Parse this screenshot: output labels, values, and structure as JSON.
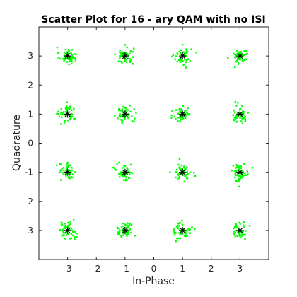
{
  "chart_data": {
    "type": "scatter",
    "title": "Scatter Plot for 16 - ary QAM with no ISI",
    "xlabel": "In-Phase",
    "ylabel": "Quadrature",
    "xlim": [
      -4,
      4
    ],
    "ylim": [
      -4,
      4
    ],
    "xticks": [
      -3,
      -2,
      -1,
      0,
      1,
      2,
      3
    ],
    "yticks": [
      -3,
      -2,
      -1,
      0,
      1,
      2,
      3
    ],
    "grid": false,
    "noise_std_estimate": 0.15,
    "series": [
      {
        "role": "received",
        "marker": "dot",
        "color": "#00ff00",
        "samples_per_point": 50,
        "centers": [
          [
            -3,
            3
          ],
          [
            -1,
            3
          ],
          [
            1,
            3
          ],
          [
            3,
            3
          ],
          [
            -3,
            1
          ],
          [
            -1,
            1
          ],
          [
            1,
            1
          ],
          [
            3,
            1
          ],
          [
            -3,
            -1
          ],
          [
            -1,
            -1
          ],
          [
            1,
            -1
          ],
          [
            3,
            -1
          ],
          [
            -3,
            -3
          ],
          [
            -1,
            -3
          ],
          [
            1,
            -3
          ],
          [
            3,
            -3
          ]
        ]
      },
      {
        "role": "ideal",
        "marker": "asterisk",
        "color": "#000000",
        "points": [
          [
            -3,
            3
          ],
          [
            -1,
            3
          ],
          [
            1,
            3
          ],
          [
            3,
            3
          ],
          [
            -3,
            1
          ],
          [
            -1,
            1
          ],
          [
            1,
            1
          ],
          [
            3,
            1
          ],
          [
            -3,
            -1
          ],
          [
            -1,
            -1
          ],
          [
            1,
            -1
          ],
          [
            3,
            -1
          ],
          [
            -3,
            -3
          ],
          [
            -1,
            -3
          ],
          [
            1,
            -3
          ],
          [
            3,
            -3
          ]
        ]
      }
    ]
  }
}
